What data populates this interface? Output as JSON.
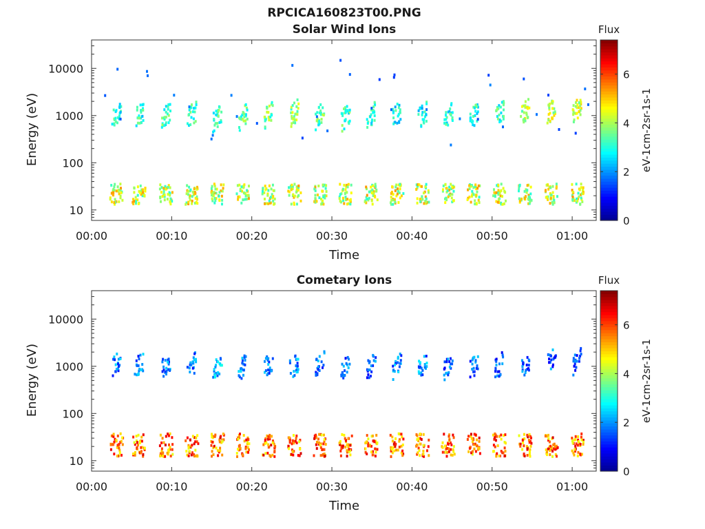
{
  "figure_title": "RPCICA160823T00.PNG",
  "colormap": [
    "#00008f",
    "#0000ff",
    "#007fff",
    "#00ffff",
    "#7fff7f",
    "#ffff00",
    "#ff7f00",
    "#ff0000",
    "#800000"
  ],
  "chart_data": [
    {
      "type": "heatmap",
      "title": "Solar Wind Ions",
      "xlabel": "Time",
      "ylabel": "Energy (eV)",
      "x_ticks": [
        "00:00",
        "00:10",
        "00:20",
        "00:30",
        "00:40",
        "00:50",
        "01:00"
      ],
      "x_tick_minutes": [
        0,
        10,
        20,
        30,
        40,
        50,
        60
      ],
      "xlim_minutes": [
        0,
        63
      ],
      "y_scale": "log",
      "y_ticks": [
        "10",
        "100",
        "1000",
        "10000"
      ],
      "y_tick_values": [
        10,
        100,
        1000,
        10000
      ],
      "ylim": [
        6,
        40000
      ],
      "colorbar": {
        "title": "Flux",
        "label": "eV-1cm-2sr-1s-1",
        "ticks": [
          "0",
          "2",
          "4",
          "6"
        ],
        "tick_values": [
          0,
          2,
          4,
          6
        ],
        "range": [
          0,
          7.4
        ]
      },
      "bursts": [
        {
          "t": 3.0,
          "e": 1100,
          "flux": 3.0
        },
        {
          "t": 5.8,
          "e": 1100,
          "flux": 3.0
        },
        {
          "t": 9.2,
          "e": 1100,
          "flux": 3.2
        },
        {
          "t": 12.4,
          "e": 1100,
          "flux": 3.0
        },
        {
          "t": 15.6,
          "e": 1000,
          "flux": 3.3
        },
        {
          "t": 18.8,
          "e": 1000,
          "flux": 3.4
        },
        {
          "t": 22.0,
          "e": 1100,
          "flux": 3.6
        },
        {
          "t": 25.2,
          "e": 1200,
          "flux": 3.8
        },
        {
          "t": 28.4,
          "e": 1100,
          "flux": 3.4
        },
        {
          "t": 31.6,
          "e": 1000,
          "flux": 3.2
        },
        {
          "t": 34.8,
          "e": 1100,
          "flux": 3.0
        },
        {
          "t": 38.0,
          "e": 1100,
          "flux": 2.8
        },
        {
          "t": 41.2,
          "e": 1100,
          "flux": 2.8
        },
        {
          "t": 44.4,
          "e": 1000,
          "flux": 2.9
        },
        {
          "t": 47.6,
          "e": 1000,
          "flux": 3.0
        },
        {
          "t": 50.8,
          "e": 1100,
          "flux": 3.2
        },
        {
          "t": 54.0,
          "e": 1300,
          "flux": 4.0
        },
        {
          "t": 57.3,
          "e": 1300,
          "flux": 4.2
        },
        {
          "t": 60.5,
          "e": 1500,
          "flux": 4.2
        }
      ],
      "low_band": {
        "e_min": 14,
        "e_max": 38,
        "flux": 4.2
      }
    },
    {
      "type": "heatmap",
      "title": "Cometary Ions",
      "xlabel": "Time",
      "ylabel": "Energy (eV)",
      "x_ticks": [
        "00:00",
        "00:10",
        "00:20",
        "00:30",
        "00:40",
        "00:50",
        "01:00"
      ],
      "x_tick_minutes": [
        0,
        10,
        20,
        30,
        40,
        50,
        60
      ],
      "xlim_minutes": [
        0,
        63
      ],
      "y_scale": "log",
      "y_ticks": [
        "10",
        "100",
        "1000",
        "10000"
      ],
      "y_tick_values": [
        10,
        100,
        1000,
        10000
      ],
      "ylim": [
        6,
        40000
      ],
      "colorbar": {
        "title": "Flux",
        "label": "eV-1cm-2sr-1s-1",
        "ticks": [
          "0",
          "2",
          "4",
          "6"
        ],
        "tick_values": [
          0,
          2,
          4,
          6
        ],
        "range": [
          0,
          7.4
        ]
      },
      "bursts": [
        {
          "t": 3.0,
          "e": 1150,
          "flux": 1.8
        },
        {
          "t": 5.8,
          "e": 1100,
          "flux": 1.8
        },
        {
          "t": 9.2,
          "e": 1100,
          "flux": 1.9
        },
        {
          "t": 12.4,
          "e": 1100,
          "flux": 1.8
        },
        {
          "t": 15.6,
          "e": 1050,
          "flux": 2.2
        },
        {
          "t": 18.8,
          "e": 1050,
          "flux": 2.0
        },
        {
          "t": 22.0,
          "e": 1150,
          "flux": 1.8
        },
        {
          "t": 25.2,
          "e": 1100,
          "flux": 2.0
        },
        {
          "t": 28.4,
          "e": 1100,
          "flux": 1.7
        },
        {
          "t": 31.6,
          "e": 1100,
          "flux": 1.6
        },
        {
          "t": 34.8,
          "e": 1100,
          "flux": 1.6
        },
        {
          "t": 38.0,
          "e": 1050,
          "flux": 1.9
        },
        {
          "t": 41.2,
          "e": 1050,
          "flux": 1.9
        },
        {
          "t": 44.4,
          "e": 1000,
          "flux": 1.6
        },
        {
          "t": 47.6,
          "e": 1050,
          "flux": 1.6
        },
        {
          "t": 50.8,
          "e": 1100,
          "flux": 1.5
        },
        {
          "t": 54.0,
          "e": 1200,
          "flux": 1.7
        },
        {
          "t": 57.3,
          "e": 1400,
          "flux": 1.6
        },
        {
          "t": 60.5,
          "e": 1300,
          "flux": 1.4
        }
      ],
      "low_band": {
        "e_min": 13,
        "e_max": 40,
        "flux": 5.6
      }
    }
  ]
}
